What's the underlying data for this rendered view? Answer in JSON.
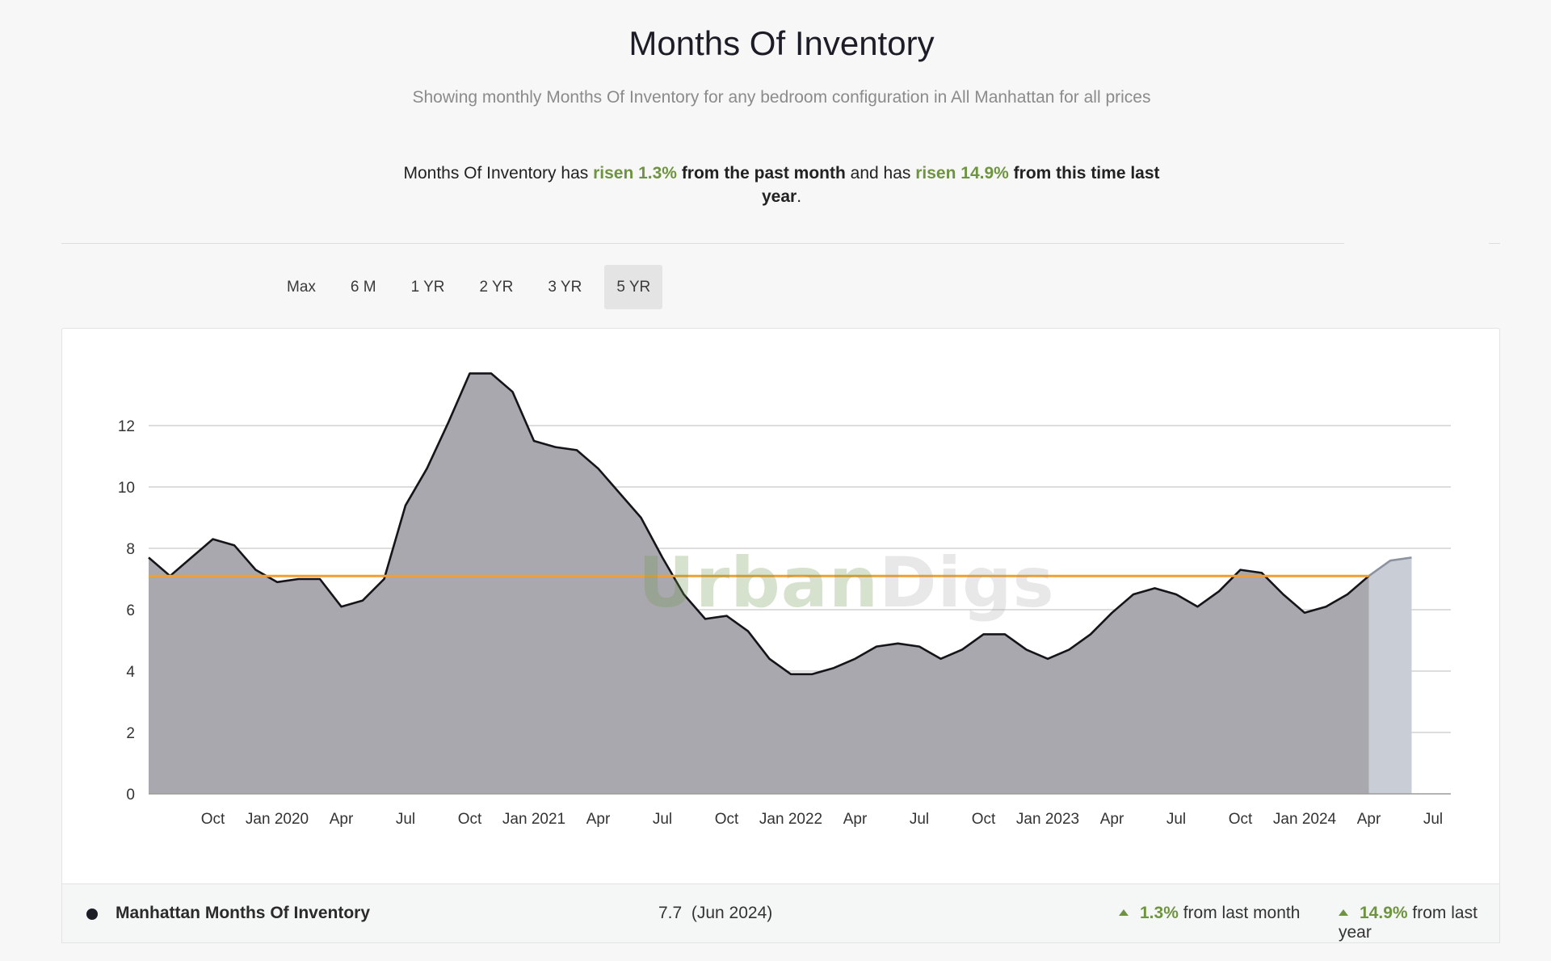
{
  "header": {
    "title": "Months Of Inventory",
    "subtitle": "Showing monthly Months Of Inventory for any bedroom configuration in All Manhattan for all prices"
  },
  "summary": {
    "part1": "Months Of Inventory has ",
    "change1": "risen 1.3%",
    "part2": " from the past month",
    "part3": " and has ",
    "change2": "risen 14.9%",
    "part4": " from this time last year",
    "part5": "."
  },
  "tabs": [
    {
      "label": "Max",
      "active": false
    },
    {
      "label": "6 M",
      "active": false
    },
    {
      "label": "1 YR",
      "active": false
    },
    {
      "label": "2 YR",
      "active": false
    },
    {
      "label": "3 YR",
      "active": false
    },
    {
      "label": "5 YR",
      "active": true
    }
  ],
  "watermark": {
    "part1": "Urban",
    "part2": "Digs"
  },
  "legend": {
    "series_name": "Manhattan Months Of Inventory",
    "value": "7.7",
    "value_date": "(Jun 2024)",
    "month_change": "1.3%",
    "month_text": "from last month",
    "year_change": "14.9%",
    "year_text": "from last year"
  },
  "colors": {
    "area_fill": "#a9a8ae",
    "forecast_fill": "#c9ced6",
    "line": "#141419",
    "forecast_line": "#8c939f",
    "average_line": "#f0a030",
    "positive": "#6e9440"
  },
  "chart_data": {
    "type": "area",
    "x_start": "2019-07",
    "x_end": "2024-07",
    "ylim": [
      0,
      13.7
    ],
    "yticks": [
      0,
      2,
      4,
      6,
      8,
      10,
      12
    ],
    "grid": true,
    "average_value": 7.1,
    "x_tick_labels": [
      {
        "date": "2019-10",
        "label": "Oct"
      },
      {
        "date": "2020-01",
        "label": "Jan 2020"
      },
      {
        "date": "2020-04",
        "label": "Apr"
      },
      {
        "date": "2020-07",
        "label": "Jul"
      },
      {
        "date": "2020-10",
        "label": "Oct"
      },
      {
        "date": "2021-01",
        "label": "Jan 2021"
      },
      {
        "date": "2021-04",
        "label": "Apr"
      },
      {
        "date": "2021-07",
        "label": "Jul"
      },
      {
        "date": "2021-10",
        "label": "Oct"
      },
      {
        "date": "2022-01",
        "label": "Jan 2022"
      },
      {
        "date": "2022-04",
        "label": "Apr"
      },
      {
        "date": "2022-07",
        "label": "Jul"
      },
      {
        "date": "2022-10",
        "label": "Oct"
      },
      {
        "date": "2023-01",
        "label": "Jan 2023"
      },
      {
        "date": "2023-04",
        "label": "Apr"
      },
      {
        "date": "2023-07",
        "label": "Jul"
      },
      {
        "date": "2023-10",
        "label": "Oct"
      },
      {
        "date": "2024-01",
        "label": "Jan 2024"
      },
      {
        "date": "2024-04",
        "label": "Apr"
      },
      {
        "date": "2024-07",
        "label": "Jul"
      }
    ],
    "series": [
      {
        "name": "Manhattan Months Of Inventory",
        "points": [
          [
            "2019-07",
            7.7
          ],
          [
            "2019-08",
            7.1
          ],
          [
            "2019-09",
            7.7
          ],
          [
            "2019-10",
            8.3
          ],
          [
            "2019-11",
            8.1
          ],
          [
            "2019-12",
            7.3
          ],
          [
            "2020-01",
            6.9
          ],
          [
            "2020-02",
            7.0
          ],
          [
            "2020-03",
            7.0
          ],
          [
            "2020-04",
            6.1
          ],
          [
            "2020-05",
            6.3
          ],
          [
            "2020-06",
            7.0
          ],
          [
            "2020-07",
            9.4
          ],
          [
            "2020-08",
            10.6
          ],
          [
            "2020-09",
            12.1
          ],
          [
            "2020-10",
            13.7
          ],
          [
            "2020-11",
            13.7
          ],
          [
            "2020-12",
            13.1
          ],
          [
            "2021-01",
            11.5
          ],
          [
            "2021-02",
            11.3
          ],
          [
            "2021-03",
            11.2
          ],
          [
            "2021-04",
            10.6
          ],
          [
            "2021-05",
            9.8
          ],
          [
            "2021-06",
            9.0
          ],
          [
            "2021-07",
            7.7
          ],
          [
            "2021-08",
            6.5
          ],
          [
            "2021-09",
            5.7
          ],
          [
            "2021-10",
            5.8
          ],
          [
            "2021-11",
            5.3
          ],
          [
            "2021-12",
            4.4
          ],
          [
            "2022-01",
            3.9
          ],
          [
            "2022-02",
            3.9
          ],
          [
            "2022-03",
            4.1
          ],
          [
            "2022-04",
            4.4
          ],
          [
            "2022-05",
            4.8
          ],
          [
            "2022-06",
            4.9
          ],
          [
            "2022-07",
            4.8
          ],
          [
            "2022-08",
            4.4
          ],
          [
            "2022-09",
            4.7
          ],
          [
            "2022-10",
            5.2
          ],
          [
            "2022-11",
            5.2
          ],
          [
            "2022-12",
            4.7
          ],
          [
            "2023-01",
            4.4
          ],
          [
            "2023-02",
            4.7
          ],
          [
            "2023-03",
            5.2
          ],
          [
            "2023-04",
            5.9
          ],
          [
            "2023-05",
            6.5
          ],
          [
            "2023-06",
            6.7
          ],
          [
            "2023-07",
            6.5
          ],
          [
            "2023-08",
            6.1
          ],
          [
            "2023-09",
            6.6
          ],
          [
            "2023-10",
            7.3
          ],
          [
            "2023-11",
            7.2
          ],
          [
            "2023-12",
            6.5
          ],
          [
            "2024-01",
            5.9
          ],
          [
            "2024-02",
            6.1
          ],
          [
            "2024-03",
            6.5
          ],
          [
            "2024-04",
            7.1
          ]
        ]
      },
      {
        "name": "",
        "points": [
          [
            "2024-04",
            7.1
          ],
          [
            "2024-05",
            7.6
          ],
          [
            "2024-06",
            7.7
          ]
        ]
      }
    ]
  }
}
